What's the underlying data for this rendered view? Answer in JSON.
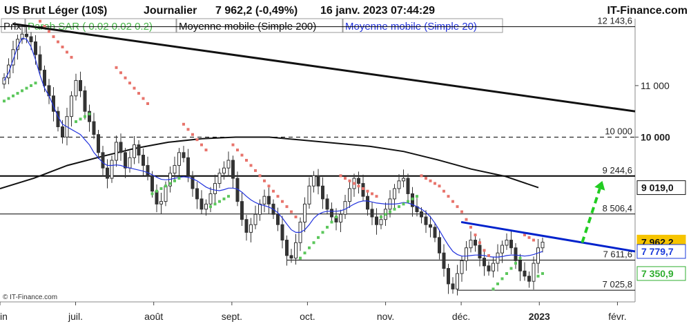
{
  "header": {
    "instrument": "US Brut Léger (10$)",
    "period": "Journalier",
    "price_change": "7 962,2 (-0,49%)",
    "timestamp": "16 janv. 2023 07:44:29",
    "brand": "IT-Finance.com"
  },
  "legend": {
    "price": "Prix",
    "sar": "Parab SAR ( 0.02 0.02 0.2)",
    "ma200": "Moyenne mobile (Simple 200)",
    "ma20": "Moyenne mobile (Simple 20)"
  },
  "copyright": "© IT-Finance.com",
  "colors": {
    "candle": "#333333",
    "sar_above": "#e8746c",
    "sar_below": "#5cc75c",
    "ma200": "#111111",
    "ma20": "#2233dd",
    "trendline": "#0022cc",
    "arrow": "#22cc22",
    "badge_price": "#f6c400",
    "badge_ma20_text": "#1a3adb",
    "badge_sar_text": "#2fae2f"
  },
  "chart_data": {
    "type": "candlestick",
    "title": "US Brut Léger (10$)",
    "ylim": [
      6800,
      12300
    ],
    "x_ticks": [
      "juin",
      "juil.",
      "août",
      "sept.",
      "oct.",
      "nov.",
      "déc.",
      "2023",
      "févr."
    ],
    "x_tick_dates": [
      "2022-06-01",
      "2022-07-01",
      "2022-08-01",
      "2022-09-01",
      "2022-10-01",
      "2022-11-01",
      "2022-12-01",
      "2023-01-01",
      "2023-02-01"
    ],
    "x_range": [
      "2022-06-01",
      "2023-02-08"
    ],
    "grid": false,
    "horizontal_levels": [
      {
        "value": 12143.6,
        "label": "12 143,6",
        "style": "solid-thin"
      },
      {
        "value": 10000,
        "label": "10 000",
        "style": "dashed"
      },
      {
        "value": 9244.6,
        "label": "9 244,6",
        "style": "solid-thick"
      },
      {
        "value": 8506.4,
        "label": "8 506,4",
        "style": "solid-thin"
      },
      {
        "value": 7611.6,
        "label": "7 611,6",
        "style": "solid-thin"
      },
      {
        "value": 7025.8,
        "label": "7 025,8",
        "style": "solid-thin"
      }
    ],
    "right_axis_ticks": [
      {
        "value": 11000,
        "label": "11 000"
      },
      {
        "value": 10000,
        "label": "10 000"
      }
    ],
    "badges": [
      {
        "value": 9019.0,
        "label": "9 019,0",
        "kind": "ma200"
      },
      {
        "value": 7962.2,
        "label": "7 962,2",
        "kind": "price"
      },
      {
        "value": 7779.7,
        "label": "7 779,7",
        "kind": "ma20"
      },
      {
        "value": 7350.9,
        "label": "7 350,9",
        "kind": "sar"
      }
    ],
    "last_close": 7962.2,
    "closes": [
      11150,
      11400,
      11700,
      11900,
      12000,
      11950,
      11850,
      11600,
      11300,
      11000,
      10800,
      10500,
      10200,
      10000,
      10400,
      10800,
      11100,
      10900,
      10500,
      10300,
      10050,
      9700,
      9400,
      9200,
      9550,
      9900,
      9700,
      9400,
      9600,
      9850,
      9650,
      9450,
      9250,
      8950,
      8700,
      8750,
      9050,
      9300,
      9450,
      9700,
      9600,
      9250,
      9000,
      8800,
      8600,
      8700,
      8900,
      9100,
      9300,
      9400,
      9550,
      9200,
      8750,
      8400,
      8150,
      8300,
      8500,
      8700,
      8850,
      8700,
      8500,
      8300,
      8000,
      7700,
      7650,
      7950,
      8350,
      8700,
      9050,
      9250,
      9050,
      8800,
      8600,
      8450,
      8350,
      8500,
      8750,
      9000,
      9200,
      9100,
      8850,
      8600,
      8450,
      8300,
      8400,
      8600,
      8800,
      9000,
      9150,
      9200,
      8900,
      8650,
      8550,
      8450,
      8300,
      8250,
      8050,
      7750,
      7450,
      7150,
      7050,
      7350,
      7600,
      7850,
      8000,
      7900,
      7650,
      7500,
      7400,
      7550,
      7750,
      7900,
      8000,
      7850,
      7600,
      7400,
      7300,
      7200,
      7550,
      7850,
      7960
    ],
    "ma20": [
      11100,
      11250,
      11500,
      11750,
      11920,
      11900,
      11750,
      11500,
      11200,
      10950,
      10800,
      10600,
      10400,
      10250,
      10200,
      10150,
      10100,
      10050,
      9950,
      9850,
      9700,
      9600,
      9500,
      9450,
      9450,
      9460,
      9450,
      9420,
      9400,
      9380,
      9360,
      9340,
      9310,
      9270,
      9220,
      9180,
      9170,
      9180,
      9200,
      9220,
      9230,
      9220,
      9190,
      9150,
      9090,
      9030,
      8990,
      8970,
      8960,
      8980,
      9010,
      9010,
      8990,
      8930,
      8850,
      8780,
      8730,
      8690,
      8670,
      8640,
      8600,
      8530,
      8430,
      8310,
      8200,
      8150,
      8150,
      8200,
      8300,
      8420,
      8500,
      8540,
      8560,
      8560,
      8560,
      8570,
      8600,
      8650,
      8700,
      8740,
      8760,
      8760,
      8740,
      8720,
      8710,
      8700,
      8700,
      8700,
      8710,
      8730,
      8720,
      8690,
      8650,
      8600,
      8540,
      8450,
      8330,
      8190,
      8040,
      7900,
      7780,
      7720,
      7690,
      7690,
      7700,
      7710,
      7710,
      7700,
      7680,
      7670,
      7670,
      7680,
      7700,
      7710,
      7710,
      7700,
      7690,
      7700,
      7720,
      7750,
      7779.7
    ],
    "ma200_points": [
      [
        0,
        9000
      ],
      [
        15,
        9200
      ],
      [
        30,
        9450
      ],
      [
        45,
        9620
      ],
      [
        60,
        9780
      ],
      [
        75,
        9900
      ],
      [
        90,
        9970
      ],
      [
        105,
        10000
      ],
      [
        120,
        10000
      ],
      [
        135,
        9940
      ],
      [
        150,
        9880
      ],
      [
        165,
        9820
      ],
      [
        180,
        9720
      ],
      [
        195,
        9560
      ],
      [
        210,
        9380
      ],
      [
        225,
        9240
      ],
      [
        240,
        9019
      ]
    ],
    "ma200_x_range": [
      0,
      240
    ],
    "sar_above": [
      [
        8,
        12250
      ],
      [
        9,
        12150
      ],
      [
        10,
        12050
      ],
      [
        11,
        11950
      ],
      [
        12,
        11850
      ],
      [
        13,
        11750
      ],
      [
        14,
        11650
      ],
      [
        15,
        11550
      ],
      [
        25,
        11350
      ],
      [
        26,
        11250
      ],
      [
        27,
        11150
      ],
      [
        28,
        11050
      ],
      [
        29,
        10950
      ],
      [
        30,
        10850
      ],
      [
        31,
        10750
      ],
      [
        32,
        10650
      ],
      [
        40,
        10250
      ],
      [
        41,
        10150
      ],
      [
        42,
        10050
      ],
      [
        43,
        9950
      ],
      [
        44,
        9850
      ],
      [
        45,
        9750
      ],
      [
        51,
        9850
      ],
      [
        52,
        9750
      ],
      [
        53,
        9650
      ],
      [
        54,
        9550
      ],
      [
        55,
        9450
      ],
      [
        56,
        9350
      ],
      [
        57,
        9250
      ],
      [
        58,
        9150
      ],
      [
        59,
        9050
      ],
      [
        60,
        8950
      ],
      [
        61,
        8850
      ],
      [
        62,
        8750
      ],
      [
        63,
        8650
      ],
      [
        64,
        8550
      ],
      [
        65,
        8450
      ],
      [
        75,
        9250
      ],
      [
        76,
        9200
      ],
      [
        77,
        9150
      ],
      [
        78,
        9100
      ],
      [
        79,
        9050
      ],
      [
        80,
        9000
      ],
      [
        81,
        8950
      ],
      [
        82,
        8900
      ],
      [
        83,
        8850
      ],
      [
        93,
        9250
      ],
      [
        94,
        9200
      ],
      [
        95,
        9150
      ],
      [
        96,
        9100
      ],
      [
        97,
        9050
      ],
      [
        98,
        8950
      ],
      [
        99,
        8850
      ],
      [
        100,
        8750
      ],
      [
        101,
        8650
      ],
      [
        102,
        8550
      ],
      [
        103,
        8400
      ],
      [
        104,
        8250
      ],
      [
        105,
        8100
      ],
      [
        106,
        7950
      ],
      [
        107,
        7800
      ],
      [
        108,
        7700
      ],
      [
        116,
        8100
      ],
      [
        117,
        8050
      ],
      [
        118,
        8000
      ]
    ],
    "sar_below": [
      [
        0,
        10700
      ],
      [
        1,
        10750
      ],
      [
        2,
        10800
      ],
      [
        3,
        10850
      ],
      [
        4,
        10900
      ],
      [
        5,
        10950
      ],
      [
        6,
        11000
      ],
      [
        7,
        11050
      ],
      [
        16,
        10300
      ],
      [
        17,
        10350
      ],
      [
        18,
        10400
      ],
      [
        19,
        10450
      ],
      [
        33,
        8900
      ],
      [
        34,
        8950
      ],
      [
        35,
        9000
      ],
      [
        36,
        9050
      ],
      [
        37,
        9100
      ],
      [
        38,
        9150
      ],
      [
        39,
        9200
      ],
      [
        46,
        8650
      ],
      [
        47,
        8700
      ],
      [
        48,
        8750
      ],
      [
        49,
        8800
      ],
      [
        50,
        8850
      ],
      [
        66,
        7650
      ],
      [
        67,
        7750
      ],
      [
        68,
        7850
      ],
      [
        69,
        7950
      ],
      [
        70,
        8050
      ],
      [
        71,
        8150
      ],
      [
        72,
        8250
      ],
      [
        73,
        8350
      ],
      [
        74,
        8450
      ],
      [
        84,
        8450
      ],
      [
        85,
        8500
      ],
      [
        86,
        8550
      ],
      [
        87,
        8600
      ],
      [
        88,
        8650
      ],
      [
        89,
        8700
      ],
      [
        90,
        8750
      ],
      [
        91,
        8800
      ],
      [
        92,
        8850
      ],
      [
        109,
        7050
      ],
      [
        110,
        7150
      ],
      [
        111,
        7250
      ],
      [
        112,
        7350
      ],
      [
        113,
        7450
      ],
      [
        114,
        7550
      ],
      [
        115,
        7650
      ],
      [
        119,
        7300
      ],
      [
        120,
        7350.9
      ]
    ],
    "trendline_dark": {
      "from": [
        "2022-06-06",
        12200
      ],
      "to": [
        "2023-02-08",
        10500
      ]
    },
    "trendline_blue": {
      "from": [
        "2022-12-01",
        8350
      ],
      "to": [
        "2023-02-08",
        7780
      ]
    },
    "arrow": {
      "from": [
        "2023-01-18",
        7950
      ],
      "to": [
        "2023-01-26",
        9150
      ]
    }
  }
}
